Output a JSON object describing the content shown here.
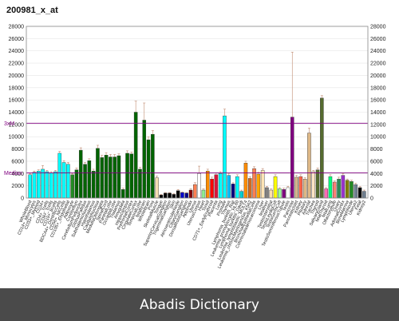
{
  "chart_data": {
    "type": "bar",
    "title": "200981_x_at",
    "ylim": [
      0,
      28000
    ],
    "yticks": [
      0,
      2000,
      4000,
      6000,
      8000,
      10000,
      12000,
      14000,
      16000,
      18000,
      20000,
      22000,
      24000,
      26000,
      28000
    ],
    "reference_lines": [
      {
        "label": "3xM",
        "value": 12200,
        "color": "#800080"
      },
      {
        "label": "Median",
        "value": 4100,
        "color": "#800080"
      }
    ],
    "categories": [
      "WholeBlood",
      "CD14+_Monocytes",
      "CD33+_Myeloid",
      "CD34+",
      "CD4+_Tcells",
      "CD8+_Tcells",
      "CD19+_Bcells",
      "BDCA4+_DentriticCells",
      "CD56+_NKCells",
      "CD105+_Endothelial",
      "Adipocyte",
      "Cerebellum",
      "CerebellumPeduncles",
      "GlobusPallidus",
      "SubthalamicNucleus",
      "Hypothalamus",
      "CaudateNucleus",
      "MedullaOblongata",
      "SpinalCord",
      "ParietalLobe",
      "OccipitalLobe",
      "Thalamus",
      "Amygdala",
      "Hippocampus",
      "PrefrontalCortex",
      "CingulateCortex",
      "TemporalLobe",
      "fetalbrain",
      "WholeBrain",
      "Pons",
      "SkeletalMuscle",
      "Tongue",
      "SuperiorCervicalGanglion",
      "TrigeminalGanglion",
      "Skin",
      "AtrioventricularNode",
      "CiliaryGanglion",
      "DorsalRootGanglion",
      "Appendix",
      "Uterus",
      "UterusCorpus",
      "Heart",
      "Tonsil",
      "CD71+_EarlyErythroid",
      "Placenta",
      "Lung",
      "Prostate",
      "Thymus",
      "Lymphoma_burkitts_Raji",
      "Leukemia_promyelocytic_HL60",
      "Lymphoma_burkitts_Daudi",
      "Leukemia_lymphoblastic_MOLT4",
      "Leukemia_chronicMyelogenous_K562",
      "BronchialEpithelialCells",
      "Colorectaladenocarcinoma",
      "Liver",
      "fetalliver",
      "TestisInterstitial",
      "TestisLeydigCell",
      "TestisGermCell",
      "TestisSeminiferousTubule",
      "Testis",
      "Pancreas",
      "PancreaticIslet",
      "Kidney",
      "Pituitary",
      "Adrenal",
      "Trachea",
      "Thyroid",
      "SalivaryGland",
      "fetalThyroid",
      "fetalLung",
      "OlfactoryBulb",
      "Ovary",
      "AdrenalCortex",
      "BoneMarrow",
      "LymphNode",
      "Uterus2",
      "Fetal",
      "Kidney2"
    ],
    "colors": [
      "#00ffff",
      "#00ffff",
      "#00ffff",
      "#00ffff",
      "#00ffff",
      "#00ffff",
      "#00ffff",
      "#00ffff",
      "#00ffff",
      "#00ffff",
      "#228b22",
      "#006400",
      "#006400",
      "#006400",
      "#006400",
      "#006400",
      "#006400",
      "#006400",
      "#006400",
      "#006400",
      "#006400",
      "#006400",
      "#006400",
      "#006400",
      "#006400",
      "#006400",
      "#006400",
      "#006400",
      "#006400",
      "#006400",
      "#f5deb3",
      "#000000",
      "#000000",
      "#000000",
      "#000000",
      "#000000",
      "#0000cd",
      "#00008b",
      "#800000",
      "#ff7f50",
      "#ffffff",
      "#90ee90",
      "#ff8c00",
      "#ff0000",
      "#dc143c",
      "#00ffff",
      "#00ffff",
      "#00bfff",
      "#000080",
      "#00ffff",
      "#00ced1",
      "#ff8c00",
      "#d2691e",
      "#ff7f50",
      "#ffa500",
      "#ffe4b5",
      "#808080",
      "#ffdead",
      "#ffff00",
      "#98fb98",
      "#800080",
      "#ffffff",
      "#800080",
      "#d2b48c",
      "#ff6347",
      "#deb887",
      "#deb887",
      "#ffe4c4",
      "#556b2f",
      "#556b2f",
      "#ff69b4",
      "#00ff7f",
      "#fa8072",
      "#2e8b57",
      "#9932cc",
      "#808000",
      "#228b22",
      "#708090",
      "#000000",
      "#708090"
    ],
    "values": [
      3800,
      4200,
      4400,
      4700,
      4300,
      4100,
      4300,
      7300,
      5800,
      5500,
      3800,
      4600,
      7800,
      5500,
      6100,
      4400,
      8100,
      6600,
      7000,
      6700,
      6700,
      6900,
      1400,
      7300,
      7200,
      14000,
      4700,
      12700,
      9500,
      10400,
      3300,
      500,
      800,
      800,
      600,
      1200,
      900,
      800,
      1300,
      2200,
      4000,
      1300,
      4400,
      3100,
      3800,
      4000,
      13400,
      3700,
      2300,
      3500,
      1100,
      5700,
      3200,
      4800,
      3900,
      4500,
      1700,
      1300,
      3500,
      1500,
      1400,
      1700,
      13200,
      3400,
      3500,
      3100,
      10600,
      4300,
      4600,
      16300,
      1500,
      3500,
      2600,
      3100,
      3700,
      2900,
      2700,
      2200,
      1700,
      1100
    ],
    "errors": [
      200,
      200,
      200,
      600,
      200,
      200,
      200,
      300,
      300,
      300,
      200,
      300,
      400,
      300,
      300,
      300,
      500,
      400,
      400,
      400,
      400,
      300,
      200,
      400,
      300,
      1800,
      300,
      2800,
      500,
      600,
      300,
      100,
      100,
      100,
      100,
      200,
      100,
      100,
      200,
      300,
      1200,
      200,
      300,
      300,
      300,
      300,
      1100,
      300,
      200,
      300,
      200,
      300,
      300,
      300,
      300,
      300,
      200,
      200,
      300,
      200,
      200,
      200,
      10600,
      300,
      300,
      200,
      800,
      200,
      300,
      400,
      200,
      300,
      200,
      300,
      300,
      200,
      200,
      200,
      200,
      200
    ]
  },
  "footer": {
    "text": "Abadis Dictionary"
  }
}
